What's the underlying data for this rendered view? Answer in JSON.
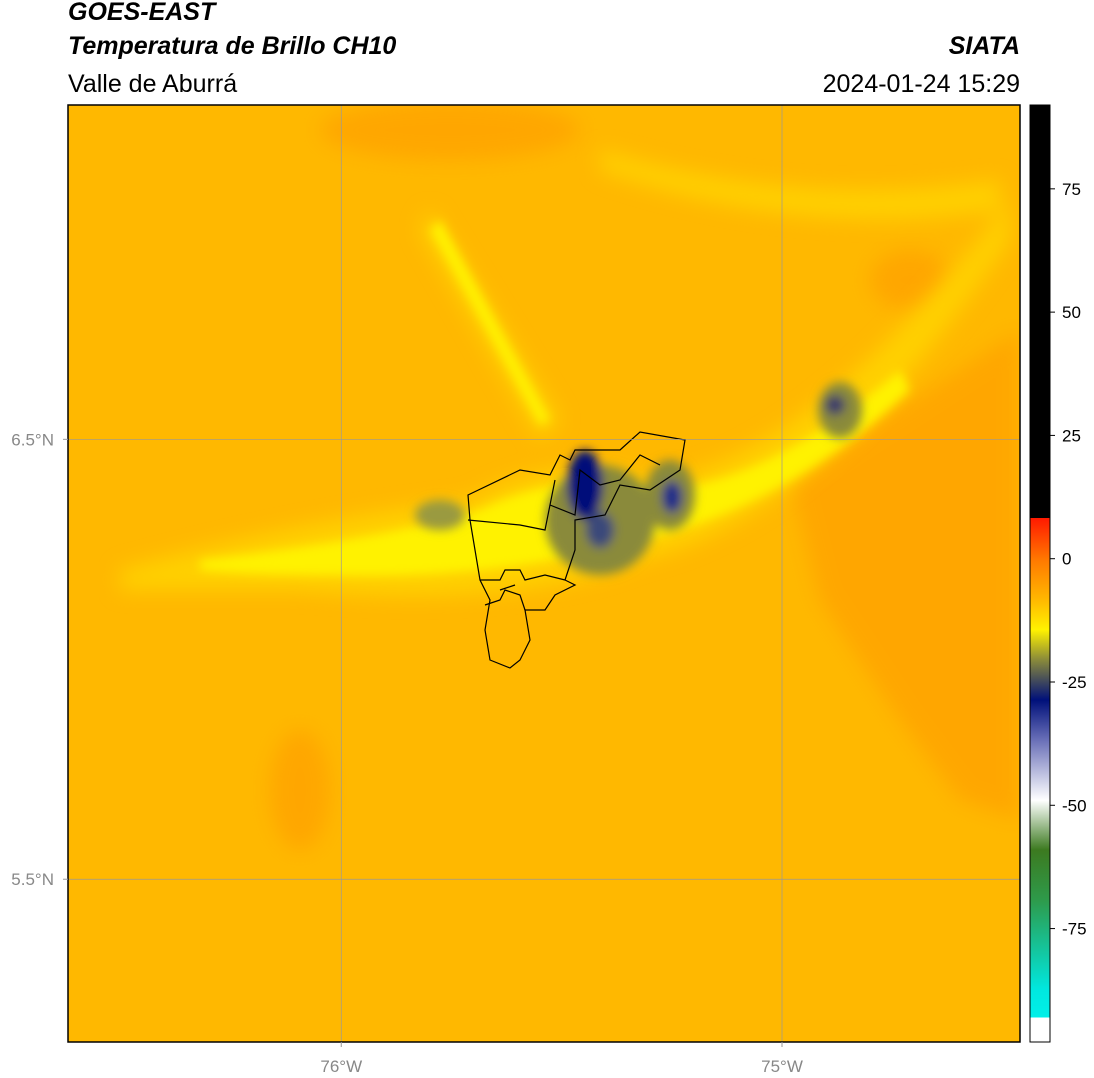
{
  "header": {
    "title": "GOES-EAST",
    "subtitle": "Temperatura de Brillo CH10",
    "region": "Valle de Aburrá",
    "source": "SIATA",
    "datetime": "2024-01-24 15:29"
  },
  "map": {
    "xlim": [
      -76.62,
      -74.46
    ],
    "ylim": [
      5.13,
      7.26
    ],
    "xticks": [
      {
        "value": -76,
        "label": "76°W"
      },
      {
        "value": -75,
        "label": "75°W"
      }
    ],
    "yticks": [
      {
        "value": 6.5,
        "label": "6.5°N"
      },
      {
        "value": 5.5,
        "label": "5.5°N"
      }
    ]
  },
  "colorbar": {
    "range": [
      -98,
      92
    ],
    "ticks": [
      75,
      50,
      25,
      0,
      -25,
      -50,
      -75
    ]
  }
}
